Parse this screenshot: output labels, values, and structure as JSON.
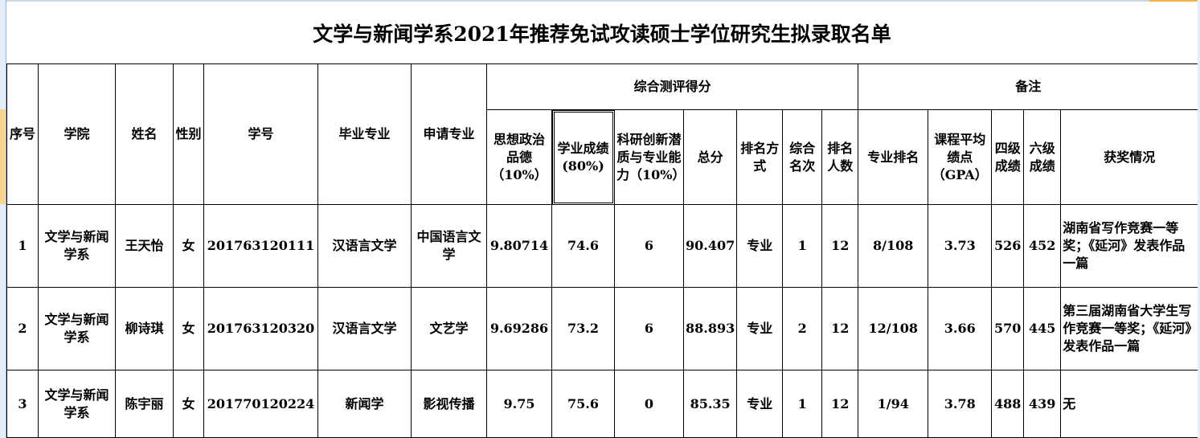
{
  "title": "文学与新闻学系2021年推荐免试攻读硕士学位研究生拟录取名单",
  "header": {
    "seq": "序号",
    "college": "学院",
    "name": "姓名",
    "gender": "性别",
    "student_id": "学号",
    "grad_major": "毕业专业",
    "apply_major": "申请专业",
    "group_score": "综合测评得分",
    "group_notes": "备注",
    "moral": "思想政治品德（10%）",
    "academic": "学业成绩(80%)",
    "research": "科研创新潜质与专业能力（10%）",
    "total": "总分",
    "rank_method": "排名方式",
    "overall_rank": "综合名次",
    "rank_count": "排名人数",
    "major_rank": "专业排名",
    "gpa": "课程平均绩点（GPA）",
    "cet4": "四级成绩",
    "cet6": "六级成绩",
    "awards": "获奖情况"
  },
  "rows": [
    {
      "seq": "1",
      "college": "文学与新闻学系",
      "name": "王天怡",
      "gender": "女",
      "student_id": "201763120111",
      "grad_major": "汉语言文学",
      "apply_major": "中国语言文学",
      "moral": "9.80714",
      "academic": "74.6",
      "research": "6",
      "total": "90.407",
      "rank_method": "专业",
      "overall_rank": "1",
      "rank_count": "12",
      "major_rank": "8/108",
      "gpa": "3.73",
      "cet4": "526",
      "cet6": "452",
      "awards": "湖南省写作竞赛一等奖；《延河》发表作品一篇"
    },
    {
      "seq": "2",
      "college": "文学与新闻学系",
      "name": "柳诗琪",
      "gender": "女",
      "student_id": "201763120320",
      "grad_major": "汉语言文学",
      "apply_major": "文艺学",
      "moral": "9.69286",
      "academic": "73.2",
      "research": "6",
      "total": "88.893",
      "rank_method": "专业",
      "overall_rank": "2",
      "rank_count": "12",
      "major_rank": "12/108",
      "gpa": "3.66",
      "cet4": "570",
      "cet6": "445",
      "awards": "第三届湖南省大学生写作竞赛一等奖；《延河》发表作品一篇"
    },
    {
      "seq": "3",
      "college": "文学与新闻学系",
      "name": "陈宇丽",
      "gender": "女",
      "student_id": "201770120224",
      "grad_major": "新闻学",
      "apply_major": "影视传播",
      "moral": "9.75",
      "academic": "75.6",
      "research": "0",
      "total": "85.35",
      "rank_method": "专业",
      "overall_rank": "1",
      "rank_count": "12",
      "major_rank": "1/94",
      "gpa": "3.78",
      "cet4": "488",
      "cet6": "439",
      "awards": "无"
    }
  ]
}
